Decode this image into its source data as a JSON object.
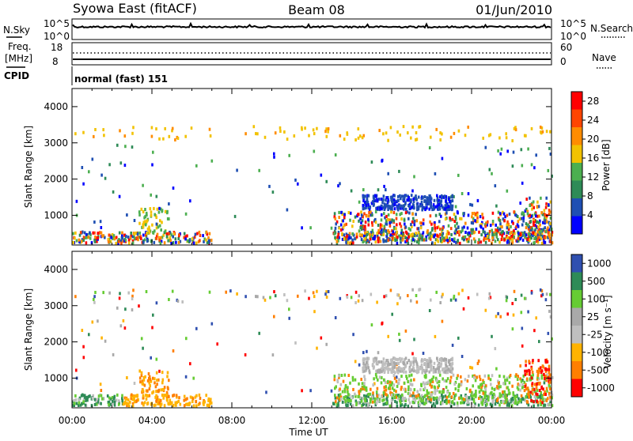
{
  "header": {
    "title": "Syowa East (fitACF)",
    "beam": "Beam 08",
    "date": "01/Jun/2010"
  },
  "top_panels": {
    "nsky_label": "N.Sky",
    "nsky_scale_top": "10^5",
    "nsky_scale_bottom": "10^0",
    "nsearch_label": "N.Search",
    "nsearch_scale_top": "10^5",
    "nsearch_scale_bottom": "10^0",
    "freq_label_line1": "Freq.",
    "freq_label_line2": "[MHz]",
    "freq_scale_top": "18",
    "freq_scale_bottom": "8",
    "nave_label": "Nave",
    "nave_scale_top": "60",
    "nave_scale_bottom": "0",
    "cpid_label": "CPID",
    "cpid_value": "normal (fast) 151"
  },
  "colors": {
    "power": [
      "#0000ff",
      "#1f4fb3",
      "#2e8b57",
      "#4caf50",
      "#f2c200",
      "#ff8c00",
      "#ff4500",
      "#ff0000"
    ],
    "velocity": [
      "#ff0000",
      "#ff7f00",
      "#ffb300",
      "#bfbfbf",
      "#a9a9a9",
      "#66cc33",
      "#2e8b57",
      "#3050b0"
    ]
  },
  "chart_data": [
    {
      "type": "heatmap",
      "panel": "power",
      "ylabel": "Slant Range [km]",
      "yticks": [
        "1000",
        "2000",
        "3000",
        "4000"
      ],
      "ylim": [
        180,
        4500
      ],
      "xlim": [
        0,
        24
      ],
      "xticks": [
        "00:00",
        "04:00",
        "08:00",
        "12:00",
        "16:00",
        "20:00",
        "00:00"
      ],
      "colorbar_label": "Power [dB]",
      "colorbar_ticks": [
        "4",
        "8",
        "12",
        "16",
        "20",
        "24",
        "28"
      ],
      "colorbar_range": [
        0,
        30
      ]
    },
    {
      "type": "heatmap",
      "panel": "velocity",
      "ylabel": "Slant Range [km]",
      "yticks": [
        "1000",
        "2000",
        "3000",
        "4000"
      ],
      "ylim": [
        180,
        4500
      ],
      "xlim": [
        0,
        24
      ],
      "xticks": [
        "00:00",
        "04:00",
        "08:00",
        "12:00",
        "16:00",
        "20:00",
        "00:00"
      ],
      "xlabel": "Time UT",
      "colorbar_label": "Velocity [m s⁻¹]",
      "colorbar_ticks": [
        "1000",
        "500",
        "100",
        "25",
        "-25",
        "-100",
        "-500",
        "-1000"
      ]
    }
  ]
}
